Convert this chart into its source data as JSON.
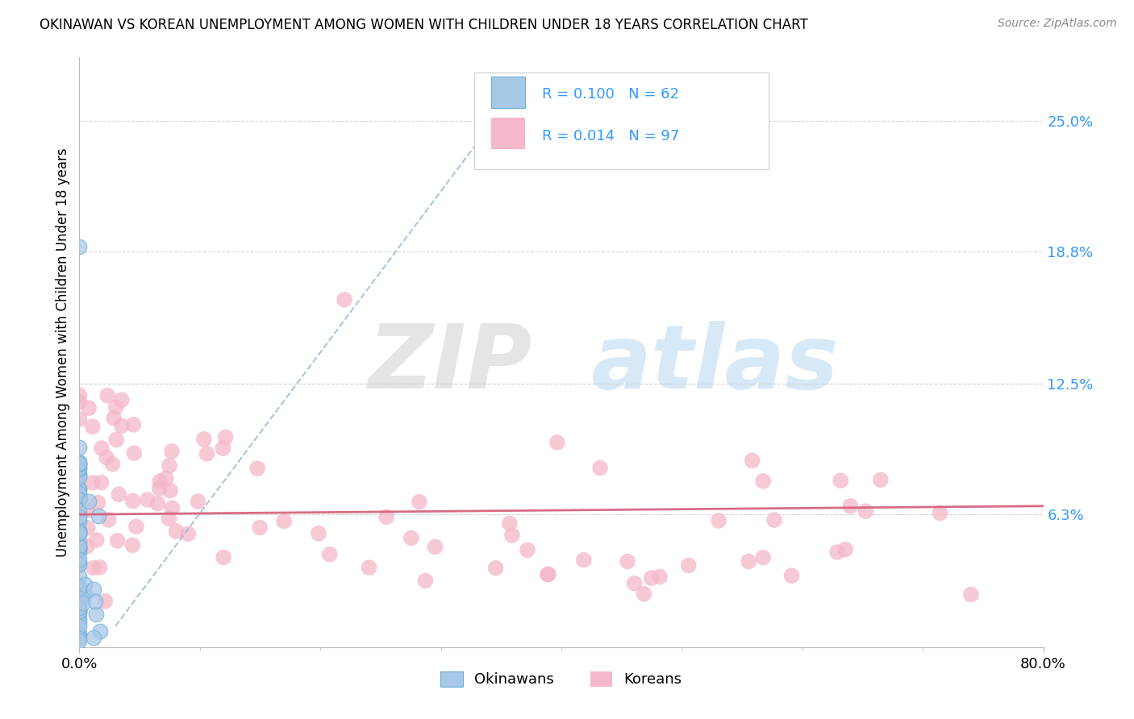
{
  "title": "OKINAWAN VS KOREAN UNEMPLOYMENT AMONG WOMEN WITH CHILDREN UNDER 18 YEARS CORRELATION CHART",
  "source": "Source: ZipAtlas.com",
  "ylabel": "Unemployment Among Women with Children Under 18 years",
  "xlim": [
    0.0,
    0.8
  ],
  "ylim": [
    0.0,
    0.28
  ],
  "ytick_positions": [
    0.063,
    0.125,
    0.188,
    0.25
  ],
  "ytick_labels": [
    "6.3%",
    "12.5%",
    "18.8%",
    "25.0%"
  ],
  "okinawan_color": "#a8c8e8",
  "okinawan_edge": "#6baed6",
  "korean_color": "#f4b8c8",
  "trend_okinawan_color": "#8ab4d4",
  "trend_korean_color": "#d45c78",
  "R_okinawan": 0.1,
  "N_okinawan": 62,
  "R_korean": 0.014,
  "N_korean": 97,
  "background_color": "#ffffff",
  "grid_color": "#d0d0d0",
  "legend_text_color": "#3399ff",
  "ytick_color": "#3399ff"
}
